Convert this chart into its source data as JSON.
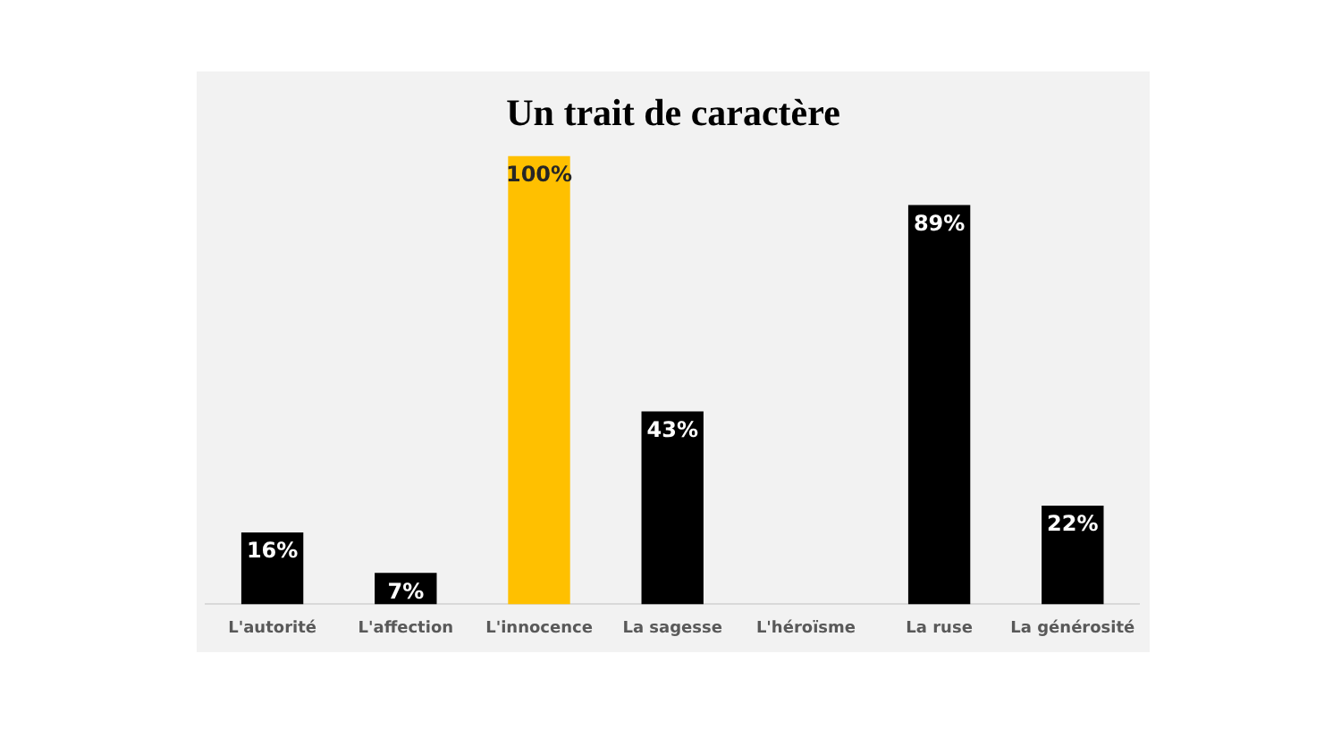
{
  "chart_data": {
    "type": "bar",
    "title": "Un trait de caractère",
    "categories": [
      "L'autorité",
      "L'affection",
      "L'innocence",
      "La sagesse",
      "L'héroïsme",
      "La ruse",
      "La générosité"
    ],
    "values": [
      16,
      7,
      100,
      43,
      null,
      89,
      22
    ],
    "colors": [
      "#000000",
      "#000000",
      "#ffc000",
      "#000000",
      "#000000",
      "#000000",
      "#000000"
    ],
    "value_labels": [
      "16%",
      "7%",
      "100%",
      "43%",
      null,
      "89%",
      "22%"
    ],
    "grid": false,
    "legend": false
  }
}
